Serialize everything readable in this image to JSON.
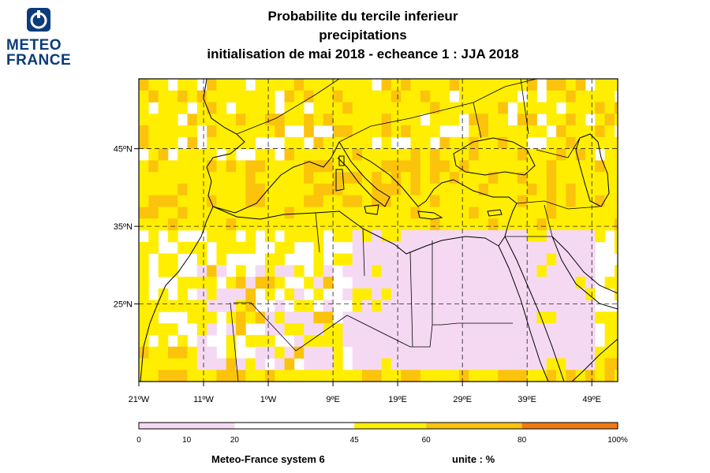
{
  "logo": {
    "line1": "METEO",
    "line2": "FRANCE"
  },
  "title": {
    "line1": "Probabilite du tercile inferieur",
    "line2": "precipitations",
    "line3": "initialisation de mai 2018  -  echeance 1 : JJA 2018"
  },
  "map": {
    "lon_range": [
      -21,
      53
    ],
    "lat_range": [
      15,
      54
    ],
    "lat_labels": [
      "45ºN",
      "35ºN",
      "25ºN"
    ],
    "lon_labels": [
      "21ºW",
      "11ºW",
      "1ºW",
      "9ºE",
      "19ºE",
      "29ºE",
      "39ºE",
      "49ºE"
    ],
    "grid": "dashed",
    "colors": {
      "lt20": "#f5d9f2",
      "c45_60": "#ffee00",
      "c60_80": "#fbc30c",
      "c80_100": "#f07a10"
    }
  },
  "colorbar": {
    "labels": [
      "0",
      "10",
      "20",
      "45",
      "60",
      "80",
      "100%"
    ],
    "values": [
      0,
      10,
      20,
      45,
      60,
      80,
      100
    ]
  },
  "footer": {
    "system": "Meteo-France system 6",
    "unit": "unite : %"
  }
}
